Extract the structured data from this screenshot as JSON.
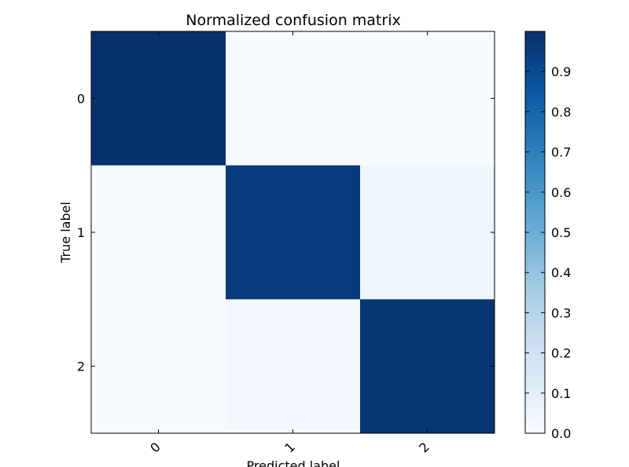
{
  "chart_data": {
    "type": "heatmap",
    "title": "Normalized confusion matrix",
    "xlabel": "Predicted label",
    "ylabel": "True label",
    "x_categories": [
      "0",
      "1",
      "2"
    ],
    "y_categories": [
      "0",
      "1",
      "2"
    ],
    "values": [
      [
        1.0,
        0.0,
        0.0
      ],
      [
        0.0,
        0.96,
        0.04
      ],
      [
        0.0,
        0.02,
        0.98
      ]
    ],
    "colormap": "Blues",
    "colorbar": {
      "range": [
        0.0,
        1.0
      ],
      "ticks": [
        "0.0",
        "0.1",
        "0.2",
        "0.3",
        "0.4",
        "0.5",
        "0.6",
        "0.7",
        "0.8",
        "0.9"
      ],
      "colors": {
        "low": "#f7fbff",
        "high": "#08306b"
      }
    },
    "x_tick_rotation": "45 degrees",
    "grid": false
  }
}
